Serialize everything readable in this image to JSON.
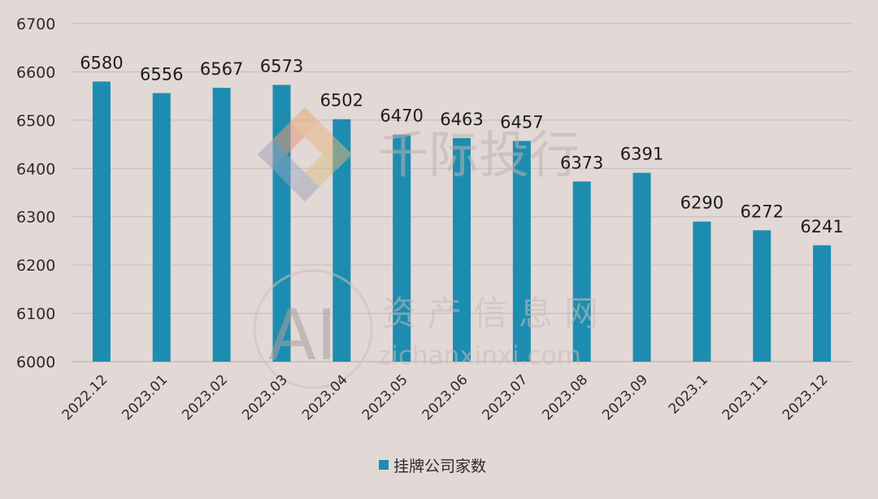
{
  "chart_data": {
    "type": "bar",
    "categories": [
      "2022.12",
      "2023.01",
      "2023.02",
      "2023.03",
      "2023.04",
      "2023.05",
      "2023.06",
      "2023.07",
      "2023.08",
      "2023.09",
      "2023.1",
      "2023.11",
      "2023.12"
    ],
    "series": [
      {
        "name": "挂牌公司家数",
        "values": [
          6580,
          6556,
          6567,
          6573,
          6502,
          6470,
          6463,
          6457,
          6373,
          6391,
          6290,
          6272,
          6241
        ],
        "color": "#1c8db0"
      }
    ],
    "ylim": [
      6000,
      6700
    ],
    "yticks": [
      6000,
      6100,
      6200,
      6300,
      6400,
      6500,
      6600,
      6700
    ],
    "grid": true,
    "legend_position": "bottom"
  },
  "watermarks": {
    "brand1": "千际投行",
    "brand2_ai": "AI",
    "brand2_cn": "资产信息网",
    "brand2_url": "zichanxinxi.com"
  },
  "colors": {
    "background": "#e2d8d6",
    "grid": "#c4bcba",
    "bar": "#1c8db0"
  }
}
